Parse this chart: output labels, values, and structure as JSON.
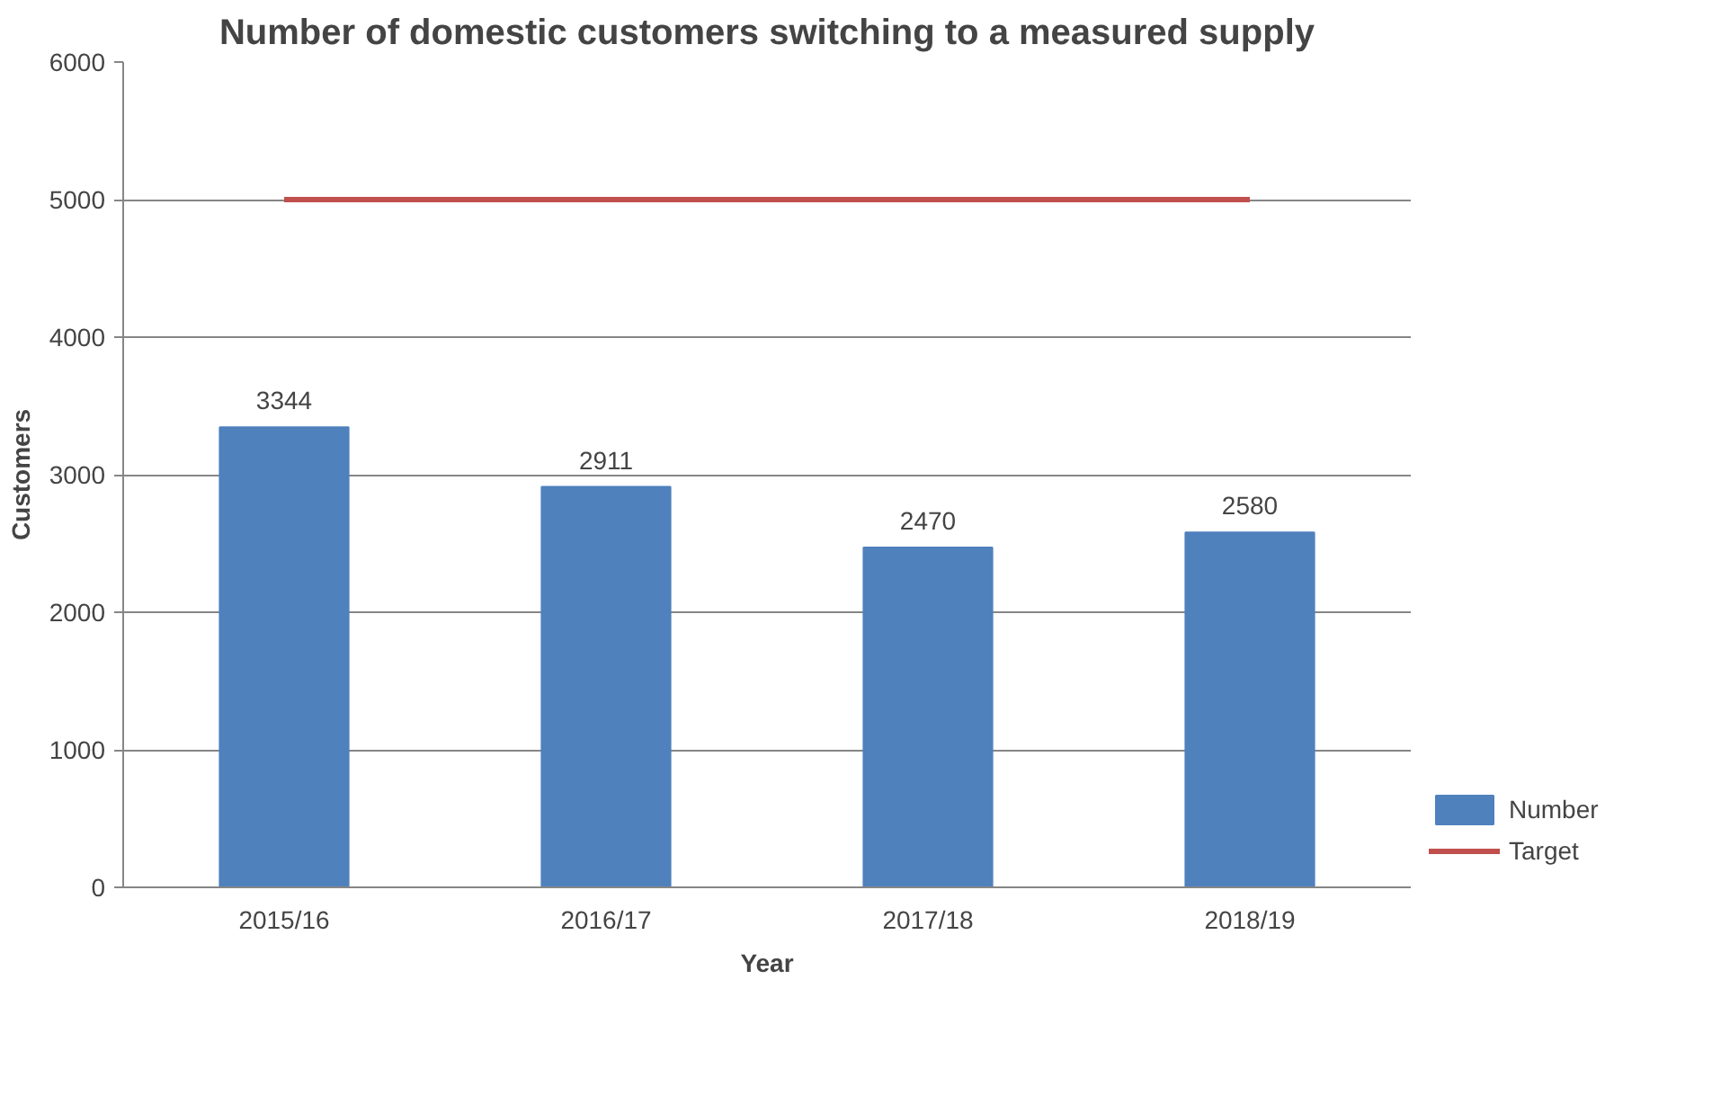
{
  "chart_data": {
    "type": "bar",
    "title": "Number of domestic customers switching to a measured supply",
    "xlabel": "Year",
    "ylabel": "Customers",
    "categories": [
      "2015/16",
      "2016/17",
      "2017/18",
      "2018/19"
    ],
    "series": [
      {
        "name": "Number",
        "color": "#4f81bd",
        "values": [
          3344,
          2911,
          2470,
          2580
        ],
        "value_labels": [
          "3344",
          "2911",
          "2470",
          "2580"
        ]
      },
      {
        "name": "Target",
        "type": "line",
        "color": "#c0504d",
        "values": [
          5000,
          5000,
          5000,
          5000
        ]
      }
    ],
    "ylim": [
      0,
      6000
    ],
    "yticks": [
      0,
      1000,
      2000,
      3000,
      4000,
      5000,
      6000
    ],
    "grid": "y",
    "legend": "right"
  }
}
